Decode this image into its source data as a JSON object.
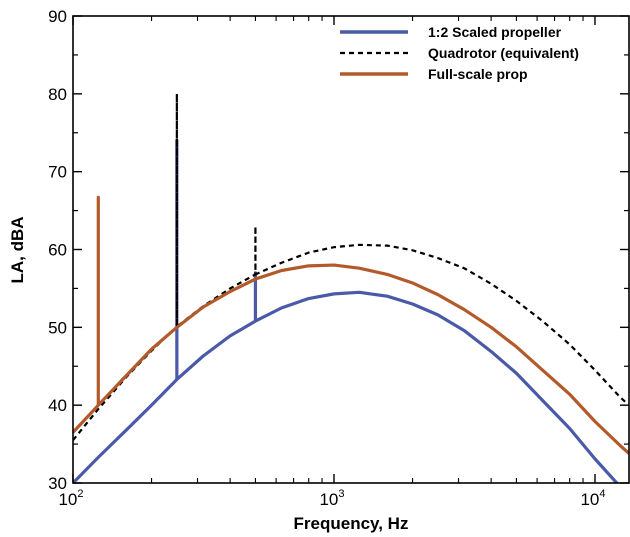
{
  "chart_data": {
    "type": "line",
    "title": "",
    "xlabel": "Frequency, Hz",
    "ylabel": "LA, dBA",
    "xscale": "log",
    "xlim": [
      100,
      13500
    ],
    "ylim": [
      30,
      90
    ],
    "x_ticks": [
      {
        "base": "10",
        "exp": "2",
        "value": 100
      },
      {
        "base": "10",
        "exp": "3",
        "value": 1000
      },
      {
        "base": "10",
        "exp": "4",
        "value": 10000
      }
    ],
    "y_ticks": [
      "30",
      "40",
      "50",
      "60",
      "70",
      "80",
      "90"
    ],
    "grid": false,
    "legend_position": "top-right",
    "series": [
      {
        "name": "1:2 Scaled propeller",
        "color": "#4a5aa8",
        "style": "solid",
        "x": [
          100,
          125,
          160,
          200,
          250,
          250,
          250,
          315,
          400,
          500,
          500,
          500,
          630,
          800,
          1000,
          1250,
          1600,
          2000,
          2500,
          3150,
          4000,
          5000,
          6300,
          8000,
          10000,
          12500,
          13500
        ],
        "y": [
          30.0,
          33.3,
          36.8,
          40.0,
          43.3,
          74,
          43.3,
          46.3,
          48.9,
          50.8,
          57.0,
          50.8,
          52.5,
          53.7,
          54.3,
          54.5,
          54.0,
          53.0,
          51.6,
          49.6,
          46.9,
          44.1,
          40.6,
          37.0,
          33.1,
          29.5,
          28.6
        ]
      },
      {
        "name": "Quadrotor (equivalent)",
        "color": "#000000",
        "style": "dashed",
        "x": [
          100,
          125,
          160,
          200,
          250,
          250,
          250,
          315,
          400,
          500,
          500,
          500,
          630,
          800,
          1000,
          1250,
          1600,
          2000,
          2500,
          3150,
          4000,
          5000,
          6300,
          8000,
          10000,
          12500,
          13500
        ],
        "y": [
          35.5,
          39.5,
          43.6,
          47.0,
          50.1,
          80,
          50.1,
          52.7,
          55.0,
          56.8,
          63,
          56.8,
          58.3,
          59.6,
          60.3,
          60.6,
          60.5,
          59.9,
          58.9,
          57.6,
          55.6,
          53.4,
          50.8,
          47.8,
          44.5,
          41.0,
          40.0
        ]
      },
      {
        "name": "Full-scale prop",
        "color": "#b35a2b",
        "style": "solid",
        "x": [
          100,
          125,
          125,
          125,
          160,
          200,
          250,
          315,
          400,
          500,
          630,
          800,
          1000,
          1250,
          1600,
          2000,
          2500,
          3150,
          4000,
          5000,
          6300,
          8000,
          10000,
          12500,
          13500
        ],
        "y": [
          36.5,
          40.0,
          66.7,
          40.0,
          43.8,
          47.2,
          50.0,
          52.6,
          54.6,
          56.2,
          57.3,
          57.9,
          58.0,
          57.6,
          56.8,
          55.7,
          54.2,
          52.3,
          50.0,
          47.5,
          44.5,
          41.4,
          37.9,
          34.8,
          33.8
        ]
      }
    ]
  }
}
